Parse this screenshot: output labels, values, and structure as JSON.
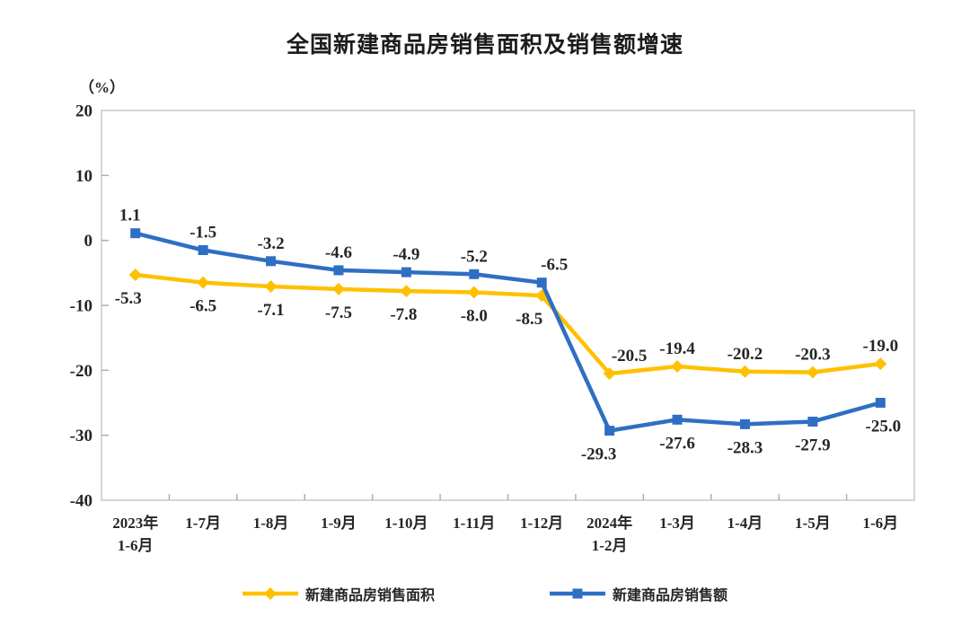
{
  "page": {
    "background": "#ffffff"
  },
  "chart_data": {
    "type": "line",
    "title": "全国新建商品房销售面积及销售额增速",
    "unit_label": "（%）",
    "categories": [
      "2023年\n1-6月",
      "1-7月",
      "1-8月",
      "1-9月",
      "1-10月",
      "1-11月",
      "1-12月",
      "2024年\n1-2月",
      "1-3月",
      "1-4月",
      "1-5月",
      "1-6月"
    ],
    "ylim": [
      -40,
      20
    ],
    "ytick_step": 10,
    "ytick_labels": [
      "20",
      "10",
      "0",
      "-10",
      "-20",
      "-30",
      "-40"
    ],
    "grid": false,
    "legend_position": "bottom",
    "axis_color": "#c8c8c8",
    "tick_color": "#aeaeae",
    "text_color": "#262626",
    "series": [
      {
        "name": "新建商品房销售面积",
        "color": "#FFC000",
        "marker": "diamond",
        "values": [
          -5.3,
          -6.5,
          -7.1,
          -7.5,
          -7.8,
          -8.0,
          -8.5,
          -20.5,
          -19.4,
          -20.2,
          -20.3,
          -19.0
        ],
        "labels": [
          "-5.3",
          "-6.5",
          "-7.1",
          "-7.5",
          "-7.8",
          "-8.0",
          "-8.5",
          "-20.5",
          "-19.4",
          "-20.2",
          "-20.3",
          "-19.0"
        ],
        "label_side": [
          "below",
          "below",
          "below",
          "below",
          "below",
          "below",
          "below",
          "above",
          "above",
          "above",
          "above",
          "above"
        ],
        "label_dx": [
          -8,
          0,
          0,
          0,
          -3,
          0,
          -14,
          22,
          0,
          0,
          0,
          0
        ]
      },
      {
        "name": "新建商品房销售额",
        "color": "#2E6FC4",
        "marker": "square",
        "values": [
          1.1,
          -1.5,
          -3.2,
          -4.6,
          -4.9,
          -5.2,
          -6.5,
          -29.3,
          -27.6,
          -28.3,
          -27.9,
          -25.0
        ],
        "labels": [
          "1.1",
          "-1.5",
          "-3.2",
          "-4.6",
          "-4.9",
          "-5.2",
          "-6.5",
          "-29.3",
          "-27.6",
          "-28.3",
          "-27.9",
          "-25.0"
        ],
        "label_side": [
          "above",
          "above",
          "above",
          "above",
          "above",
          "above",
          "above",
          "below",
          "below",
          "below",
          "below",
          "below"
        ],
        "label_dx": [
          -6,
          0,
          0,
          0,
          0,
          0,
          14,
          -12,
          0,
          0,
          0,
          3
        ]
      }
    ]
  }
}
